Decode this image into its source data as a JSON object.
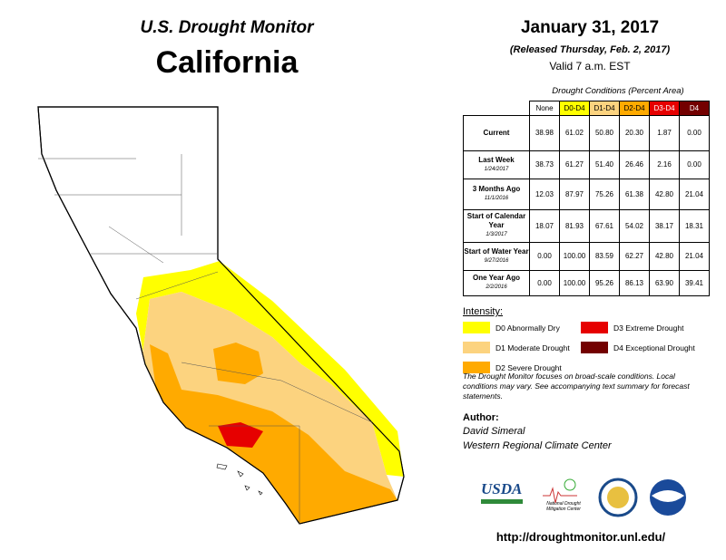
{
  "header": {
    "kicker": "U.S. Drought Monitor",
    "title": "California",
    "date": "January 31, 2017",
    "released": "(Released Thursday, Feb. 2, 2017)",
    "valid": "Valid 7 a.m. EST"
  },
  "table": {
    "caption": "Drought Conditions (Percent Area)",
    "columns": [
      {
        "label": "None",
        "color": "#ffffff"
      },
      {
        "label": "D0-D4",
        "color": "#ffff00"
      },
      {
        "label": "D1-D4",
        "color": "#fcd37f"
      },
      {
        "label": "D2-D4",
        "color": "#ffaa00"
      },
      {
        "label": "D3-D4",
        "color": "#e60000"
      },
      {
        "label": "D4",
        "color": "#730000"
      }
    ],
    "rows": [
      {
        "label": "Current",
        "values": [
          "38.98",
          "61.02",
          "50.80",
          "20.30",
          "1.87",
          "0.00"
        ]
      },
      {
        "label": "Last Week",
        "date": "1/24/2017",
        "values": [
          "38.73",
          "61.27",
          "51.40",
          "26.46",
          "2.16",
          "0.00"
        ]
      },
      {
        "label": "3 Months Ago",
        "date": "11/1/2016",
        "values": [
          "12.03",
          "87.97",
          "75.26",
          "61.38",
          "42.80",
          "21.04"
        ]
      },
      {
        "label": "Start of Calendar Year",
        "date": "1/3/2017",
        "values": [
          "18.07",
          "81.93",
          "67.61",
          "54.02",
          "38.17",
          "18.31"
        ]
      },
      {
        "label": "Start of Water Year",
        "date": "9/27/2016",
        "values": [
          "0.00",
          "100.00",
          "83.59",
          "62.27",
          "42.80",
          "21.04"
        ]
      },
      {
        "label": "One Year Ago",
        "date": "2/2/2016",
        "values": [
          "0.00",
          "100.00",
          "95.26",
          "86.13",
          "63.90",
          "39.41"
        ]
      }
    ]
  },
  "legend": {
    "title": "Intensity:",
    "items": [
      {
        "label": "D0 Abnormally Dry",
        "color": "#ffff00"
      },
      {
        "label": "D1 Moderate Drought",
        "color": "#fcd37f"
      },
      {
        "label": "D2 Severe Drought",
        "color": "#ffaa00"
      },
      {
        "label": "D3 Extreme Drought",
        "color": "#e60000"
      },
      {
        "label": "D4 Exceptional Drought",
        "color": "#730000"
      }
    ]
  },
  "note": "The Drought Monitor focuses on broad-scale conditions. Local conditions may vary. See accompanying text summary for forecast statements.",
  "author": {
    "title": "Author:",
    "lines": [
      "David Simeral",
      "Western Regional Climate Center"
    ]
  },
  "logos": {
    "usda": "USDA",
    "ndmc": "National Drought Mitigation Center"
  },
  "url": "http://droughtmonitor.unl.edu/"
}
